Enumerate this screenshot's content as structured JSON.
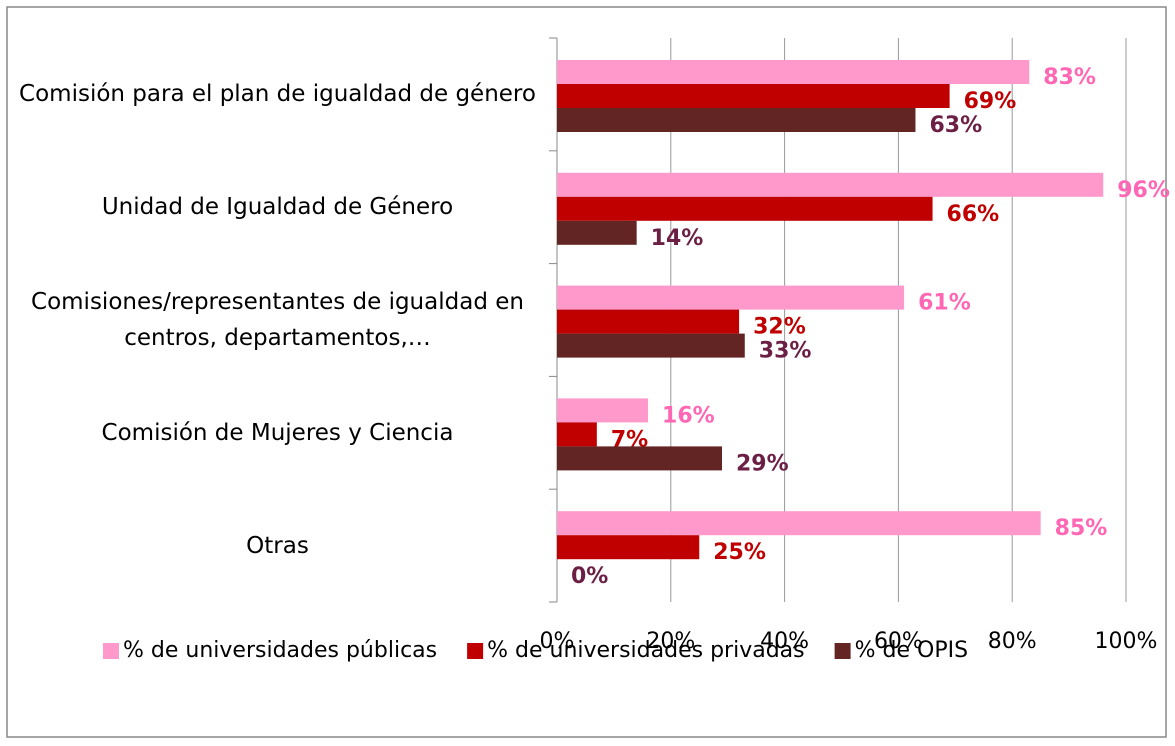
{
  "chart_data": {
    "type": "bar",
    "orientation": "horizontal",
    "categories": [
      "Comisión para el plan de igualdad de género",
      "Unidad de Igualdad de Género",
      "Comisiones/representantes de igualdad en centros, departamentos,…",
      "Comisión de Mujeres y Ciencia",
      "Otras"
    ],
    "series": [
      {
        "name": "% de universidades públicas",
        "color": "#ff99cc",
        "label_color": "#ff66b3",
        "values": [
          83,
          96,
          61,
          16,
          85
        ],
        "value_labels": [
          "83%",
          "96%",
          "61%",
          "16%",
          "85%"
        ]
      },
      {
        "name": "% de universidades privadas",
        "color": "#c00000",
        "label_color": "#c00000",
        "values": [
          69,
          66,
          32,
          7,
          25
        ],
        "value_labels": [
          "69%",
          "66%",
          "32%",
          "7%",
          "25%"
        ]
      },
      {
        "name": "% de OPIS",
        "color": "#632523",
        "label_color": "#6b1f45",
        "values": [
          63,
          14,
          33,
          29,
          0
        ],
        "value_labels": [
          "63%",
          "14%",
          "33%",
          "29%",
          "0%"
        ]
      }
    ],
    "xlim": [
      0,
      100
    ],
    "xticks": [
      {
        "value": 0,
        "label": "0%"
      },
      {
        "value": 20,
        "label": "20%"
      },
      {
        "value": 40,
        "label": "40%"
      },
      {
        "value": 60,
        "label": "60%"
      },
      {
        "value": 80,
        "label": "80%"
      },
      {
        "value": 100,
        "label": "100%"
      }
    ],
    "grid": true,
    "legend": "bottom"
  }
}
